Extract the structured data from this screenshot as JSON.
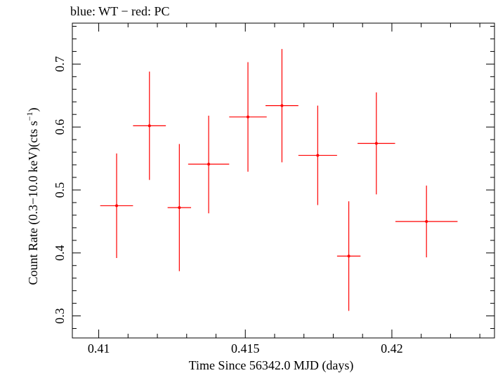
{
  "chart_data": {
    "type": "scatter",
    "title": "blue: WT − red: PC",
    "xlabel": "Time Since 56342.0 MJD (days)",
    "ylabel": "Count Rate (0.3−10.0 keV)(cts s",
    "ylabel_sup": "−1",
    "ylabel_close": ")",
    "xlim": [
      0.4091,
      0.4235
    ],
    "ylim": [
      0.265,
      0.765
    ],
    "x_ticks": [
      0.41,
      0.415,
      0.42
    ],
    "x_tick_labels": [
      "0.41",
      "0.415",
      "0.42"
    ],
    "y_ticks": [
      0.3,
      0.4,
      0.5,
      0.6,
      0.7
    ],
    "y_tick_labels": [
      "0.3",
      "0.4",
      "0.5",
      "0.6",
      "0.7"
    ],
    "x_minor_step": 0.001,
    "y_minor_step": 0.02,
    "grid": false,
    "series": [
      {
        "color": "#ff0000",
        "points": [
          {
            "x": 0.41061,
            "xerr": 0.00056,
            "y": 0.475,
            "yerr_lo": 0.083,
            "yerr_hi": 0.083
          },
          {
            "x": 0.41173,
            "xerr": 0.00056,
            "y": 0.602,
            "yerr_lo": 0.086,
            "yerr_hi": 0.086
          },
          {
            "x": 0.41275,
            "xerr": 0.0004,
            "y": 0.472,
            "yerr_lo": 0.101,
            "yerr_hi": 0.101
          },
          {
            "x": 0.41375,
            "xerr": 0.0007,
            "y": 0.541,
            "yerr_lo": 0.078,
            "yerr_hi": 0.077
          },
          {
            "x": 0.41509,
            "xerr": 0.00064,
            "y": 0.616,
            "yerr_lo": 0.087,
            "yerr_hi": 0.087
          },
          {
            "x": 0.41625,
            "xerr": 0.00056,
            "y": 0.634,
            "yerr_lo": 0.09,
            "yerr_hi": 0.09
          },
          {
            "x": 0.41747,
            "xerr": 0.00066,
            "y": 0.555,
            "yerr_lo": 0.079,
            "yerr_hi": 0.079
          },
          {
            "x": 0.41853,
            "xerr": 0.0004,
            "y": 0.395,
            "yerr_lo": 0.087,
            "yerr_hi": 0.087
          },
          {
            "x": 0.41947,
            "xerr": 0.00064,
            "y": 0.574,
            "yerr_lo": 0.081,
            "yerr_hi": 0.081
          },
          {
            "x": 0.42118,
            "xerr": 0.00106,
            "y": 0.45,
            "yerr_lo": 0.057,
            "yerr_hi": 0.057
          }
        ]
      }
    ]
  }
}
